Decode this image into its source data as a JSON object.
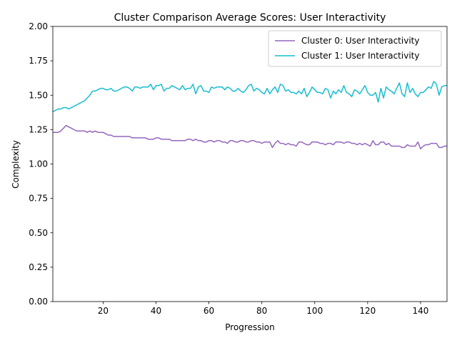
{
  "chart_data": {
    "type": "line",
    "title": "Cluster Comparison Average Scores: User Interactivity",
    "xlabel": "Progression",
    "ylabel": "Complexity",
    "xlim": [
      1,
      150
    ],
    "ylim": [
      0,
      2
    ],
    "x_ticks": [
      20,
      40,
      60,
      80,
      100,
      120,
      140
    ],
    "x_tick_labels": [
      "20",
      "40",
      "60",
      "80",
      "100",
      "120",
      "140"
    ],
    "y_ticks": [
      0,
      0.25,
      0.5,
      0.75,
      1.0,
      1.25,
      1.5,
      1.75,
      2.0
    ],
    "y_tick_labels": [
      "0.00",
      "0.25",
      "0.50",
      "0.75",
      "1.00",
      "1.25",
      "1.50",
      "1.75",
      "2.00"
    ],
    "grid": false,
    "legend_position": "top-right",
    "series": [
      {
        "name": "Cluster 0: User Interactivity",
        "color": "#9467bd",
        "x": [
          1,
          3,
          4,
          5,
          6,
          7,
          8,
          9,
          10,
          11,
          12,
          13,
          14,
          15,
          16,
          17,
          18,
          19,
          20,
          21,
          22,
          23,
          24,
          25,
          26,
          27,
          28,
          29,
          30,
          31,
          32,
          33,
          34,
          35,
          36,
          37,
          38,
          39,
          40,
          41,
          42,
          43,
          44,
          45,
          46,
          47,
          48,
          49,
          50,
          51,
          52,
          53,
          54,
          55,
          56,
          57,
          58,
          59,
          60,
          61,
          62,
          63,
          64,
          65,
          66,
          67,
          68,
          69,
          70,
          71,
          72,
          73,
          74,
          75,
          76,
          77,
          78,
          79,
          80,
          81,
          82,
          83,
          84,
          85,
          86,
          87,
          88,
          89,
          90,
          91,
          92,
          93,
          94,
          95,
          96,
          97,
          98,
          99,
          100,
          101,
          102,
          103,
          104,
          105,
          106,
          107,
          108,
          109,
          110,
          111,
          112,
          113,
          114,
          115,
          116,
          117,
          118,
          119,
          120,
          121,
          122,
          123,
          124,
          125,
          126,
          127,
          128,
          129,
          130,
          131,
          132,
          133,
          134,
          135,
          136,
          137,
          138,
          139,
          140,
          141,
          142,
          143,
          144,
          145,
          146,
          147,
          148,
          149,
          150
        ],
        "values": [
          1.23,
          1.23,
          1.24,
          1.26,
          1.28,
          1.27,
          1.26,
          1.25,
          1.24,
          1.24,
          1.24,
          1.24,
          1.23,
          1.24,
          1.23,
          1.24,
          1.23,
          1.23,
          1.23,
          1.22,
          1.21,
          1.21,
          1.2,
          1.2,
          1.2,
          1.2,
          1.2,
          1.2,
          1.2,
          1.19,
          1.19,
          1.19,
          1.19,
          1.19,
          1.19,
          1.18,
          1.18,
          1.18,
          1.19,
          1.19,
          1.18,
          1.18,
          1.18,
          1.18,
          1.17,
          1.17,
          1.17,
          1.17,
          1.17,
          1.17,
          1.18,
          1.18,
          1.17,
          1.18,
          1.17,
          1.17,
          1.16,
          1.16,
          1.17,
          1.17,
          1.16,
          1.17,
          1.17,
          1.16,
          1.16,
          1.15,
          1.17,
          1.17,
          1.16,
          1.16,
          1.17,
          1.17,
          1.16,
          1.16,
          1.17,
          1.17,
          1.16,
          1.16,
          1.15,
          1.16,
          1.16,
          1.16,
          1.12,
          1.15,
          1.17,
          1.15,
          1.15,
          1.14,
          1.15,
          1.14,
          1.14,
          1.13,
          1.16,
          1.16,
          1.15,
          1.14,
          1.14,
          1.16,
          1.16,
          1.16,
          1.15,
          1.15,
          1.14,
          1.15,
          1.15,
          1.14,
          1.16,
          1.16,
          1.16,
          1.15,
          1.16,
          1.16,
          1.15,
          1.15,
          1.14,
          1.15,
          1.14,
          1.15,
          1.14,
          1.13,
          1.17,
          1.14,
          1.14,
          1.16,
          1.16,
          1.14,
          1.15,
          1.13,
          1.13,
          1.13,
          1.13,
          1.12,
          1.12,
          1.14,
          1.13,
          1.13,
          1.13,
          1.16,
          1.11,
          1.13,
          1.14,
          1.14,
          1.15,
          1.15,
          1.15,
          1.12,
          1.12,
          1.13,
          1.13
        ]
      },
      {
        "name": "Cluster 1: User Interactivity",
        "color": "#17becf",
        "x": [
          1,
          2,
          3,
          4,
          5,
          6,
          7,
          8,
          9,
          10,
          11,
          12,
          13,
          14,
          15,
          16,
          17,
          18,
          19,
          20,
          21,
          22,
          23,
          24,
          25,
          26,
          27,
          28,
          29,
          30,
          31,
          32,
          33,
          34,
          35,
          36,
          37,
          38,
          39,
          40,
          41,
          42,
          43,
          44,
          45,
          46,
          47,
          48,
          49,
          50,
          51,
          52,
          53,
          54,
          55,
          56,
          57,
          58,
          59,
          60,
          61,
          62,
          63,
          64,
          65,
          66,
          67,
          68,
          69,
          70,
          71,
          72,
          73,
          74,
          75,
          76,
          77,
          78,
          79,
          80,
          81,
          82,
          83,
          84,
          85,
          86,
          87,
          88,
          89,
          90,
          91,
          92,
          93,
          94,
          95,
          96,
          97,
          98,
          99,
          100,
          101,
          102,
          103,
          104,
          105,
          106,
          107,
          108,
          109,
          110,
          111,
          112,
          113,
          114,
          115,
          116,
          117,
          118,
          119,
          120,
          121,
          122,
          123,
          124,
          125,
          126,
          127,
          128,
          129,
          130,
          131,
          132,
          133,
          134,
          135,
          136,
          137,
          138,
          139,
          140,
          141,
          142,
          143,
          144,
          145,
          146,
          147,
          148,
          149,
          150
        ],
        "values": [
          1.38,
          1.39,
          1.4,
          1.4,
          1.41,
          1.41,
          1.4,
          1.41,
          1.42,
          1.43,
          1.44,
          1.45,
          1.46,
          1.48,
          1.5,
          1.53,
          1.53,
          1.54,
          1.55,
          1.55,
          1.54,
          1.54,
          1.55,
          1.53,
          1.53,
          1.54,
          1.55,
          1.56,
          1.56,
          1.55,
          1.53,
          1.56,
          1.56,
          1.55,
          1.56,
          1.56,
          1.56,
          1.58,
          1.54,
          1.57,
          1.57,
          1.58,
          1.53,
          1.55,
          1.55,
          1.57,
          1.56,
          1.55,
          1.54,
          1.57,
          1.54,
          1.55,
          1.55,
          1.58,
          1.51,
          1.56,
          1.57,
          1.53,
          1.53,
          1.52,
          1.56,
          1.55,
          1.56,
          1.56,
          1.56,
          1.54,
          1.56,
          1.55,
          1.53,
          1.53,
          1.55,
          1.53,
          1.52,
          1.54,
          1.57,
          1.58,
          1.53,
          1.55,
          1.54,
          1.52,
          1.51,
          1.55,
          1.51,
          1.54,
          1.56,
          1.52,
          1.58,
          1.57,
          1.53,
          1.54,
          1.52,
          1.52,
          1.51,
          1.53,
          1.51,
          1.55,
          1.49,
          1.52,
          1.56,
          1.54,
          1.52,
          1.52,
          1.51,
          1.55,
          1.54,
          1.48,
          1.53,
          1.51,
          1.54,
          1.52,
          1.57,
          1.52,
          1.51,
          1.49,
          1.54,
          1.53,
          1.51,
          1.54,
          1.57,
          1.52,
          1.5,
          1.5,
          1.52,
          1.45,
          1.55,
          1.48,
          1.56,
          1.54,
          1.53,
          1.51,
          1.55,
          1.59,
          1.51,
          1.49,
          1.59,
          1.52,
          1.55,
          1.51,
          1.49,
          1.52,
          1.52,
          1.54,
          1.56,
          1.55,
          1.6,
          1.58,
          1.5,
          1.56,
          1.57,
          1.57
        ]
      }
    ]
  }
}
